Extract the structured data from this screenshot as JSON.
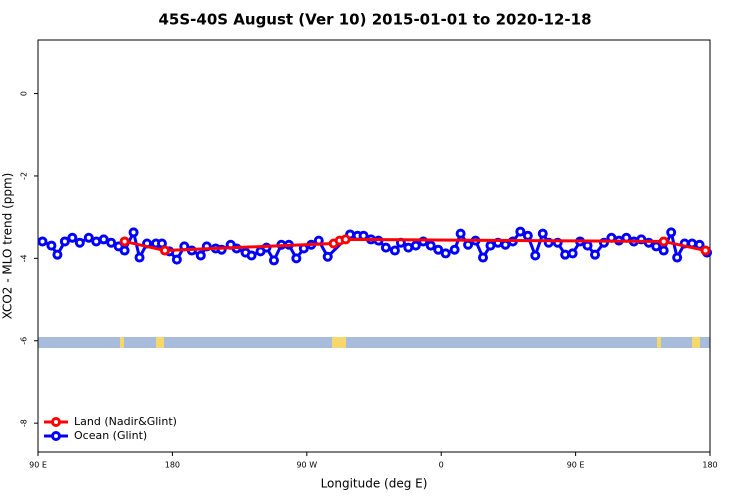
{
  "chart_data": {
    "type": "line",
    "title": "45S-40S August (Ver 10)   2015-01-01 to 2020-12-18",
    "x_label": "Longitude (deg E)",
    "y_label": "XCO2 - MLO trend (ppm)",
    "xlim": [
      90,
      540
    ],
    "xticks": [
      {
        "value": 90,
        "label": "90 E"
      },
      {
        "value": 180,
        "label": "180"
      },
      {
        "value": 270,
        "label": "90 W"
      },
      {
        "value": 360,
        "label": "0"
      },
      {
        "value": 450,
        "label": "90 E"
      },
      {
        "value": 540,
        "label": "180"
      }
    ],
    "ylim": [
      -8.7,
      1.3
    ],
    "yticks": [
      0,
      -2,
      -4,
      -6,
      -8
    ],
    "legend": "bottom-left",
    "series": [
      {
        "name": "Land (Nadir&Glint)",
        "color": "#ff0000",
        "x": [
          148,
          175,
          288,
          292,
          296,
          509,
          537
        ],
        "values": [
          -3.59,
          -3.81,
          -3.64,
          -3.57,
          -3.54,
          -3.59,
          -3.81
        ]
      },
      {
        "name": "Ocean (Glint)",
        "color": "#0000ff",
        "x": [
          93,
          99,
          103,
          108,
          113,
          118,
          124,
          129,
          134,
          139,
          144,
          148,
          154,
          158,
          163,
          169,
          173,
          178,
          183,
          188,
          193,
          199,
          203,
          209,
          213,
          219,
          223,
          229,
          233,
          239,
          243,
          248,
          253,
          258,
          263,
          268,
          273,
          278,
          284,
          299,
          304,
          308,
          313,
          318,
          323,
          329,
          333,
          338,
          343,
          348,
          353,
          358,
          363,
          369,
          373,
          378,
          383,
          388,
          393,
          398,
          403,
          408,
          413,
          418,
          423,
          428,
          432,
          438,
          443,
          448,
          453,
          458,
          463,
          469,
          474,
          479,
          484,
          489,
          494,
          499,
          504,
          509,
          514,
          518,
          523,
          528,
          533,
          538
        ],
        "values": [
          -3.59,
          -3.69,
          -3.91,
          -3.59,
          -3.5,
          -3.62,
          -3.5,
          -3.59,
          -3.54,
          -3.62,
          -3.71,
          -3.81,
          -3.37,
          -3.98,
          -3.64,
          -3.64,
          -3.64,
          -3.83,
          -4.03,
          -3.71,
          -3.81,
          -3.93,
          -3.71,
          -3.76,
          -3.79,
          -3.67,
          -3.76,
          -3.86,
          -3.93,
          -3.83,
          -3.74,
          -4.05,
          -3.67,
          -3.67,
          -4.0,
          -3.76,
          -3.67,
          -3.57,
          -3.96,
          -3.42,
          -3.45,
          -3.45,
          -3.54,
          -3.57,
          -3.74,
          -3.81,
          -3.62,
          -3.74,
          -3.69,
          -3.59,
          -3.69,
          -3.79,
          -3.88,
          -3.79,
          -3.4,
          -3.67,
          -3.57,
          -3.98,
          -3.69,
          -3.62,
          -3.67,
          -3.59,
          -3.35,
          -3.45,
          -3.93,
          -3.4,
          -3.62,
          -3.62,
          -3.91,
          -3.88,
          -3.59,
          -3.69,
          -3.91,
          -3.62,
          -3.5,
          -3.57,
          -3.5,
          -3.59,
          -3.54,
          -3.62,
          -3.71,
          -3.81,
          -3.37,
          -3.98,
          -3.64,
          -3.64,
          -3.67,
          -3.86
        ]
      }
    ]
  }
}
